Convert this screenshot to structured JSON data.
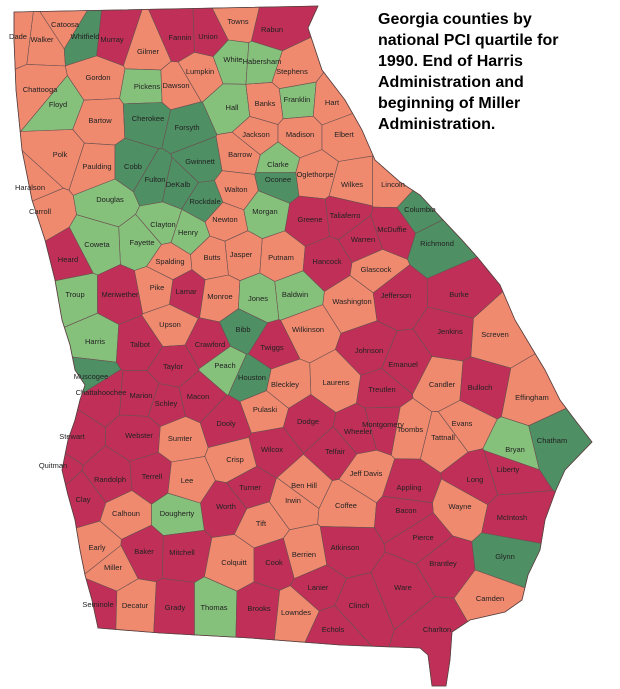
{
  "title": "Georgia counties by national PCI quartile for 1990.  End of Harris Administration and beginning of Miller Administration.",
  "counties": [
    {
      "name": "Dade",
      "color": "#f08a6f"
    },
    {
      "name": "Catoosa",
      "color": "#f08a6f"
    },
    {
      "name": "Walker",
      "color": "#f08a6f"
    },
    {
      "name": "Whitfield",
      "color": "#4e8f64"
    },
    {
      "name": "Murray",
      "color": "#c02f57"
    },
    {
      "name": "Fannin",
      "color": "#c02f57"
    },
    {
      "name": "Union",
      "color": "#c02f57"
    },
    {
      "name": "Towns",
      "color": "#f08a6f"
    },
    {
      "name": "Rabun",
      "color": "#c02f57"
    },
    {
      "name": "Gilmer",
      "color": "#f08a6f"
    },
    {
      "name": "White",
      "color": "#86c17c"
    },
    {
      "name": "Habersham",
      "color": "#86c17c"
    },
    {
      "name": "Stephens",
      "color": "#f08a6f"
    },
    {
      "name": "Lumpkin",
      "color": "#f08a6f"
    },
    {
      "name": "Gordon",
      "color": "#f08a6f"
    },
    {
      "name": "Chattooga",
      "color": "#f08a6f"
    },
    {
      "name": "Pickens",
      "color": "#86c17c"
    },
    {
      "name": "Dawson",
      "color": "#f08a6f"
    },
    {
      "name": "Floyd",
      "color": "#86c17c"
    },
    {
      "name": "Hall",
      "color": "#86c17c"
    },
    {
      "name": "Banks",
      "color": "#f08a6f"
    },
    {
      "name": "Franklin",
      "color": "#86c17c"
    },
    {
      "name": "Hart",
      "color": "#f08a6f"
    },
    {
      "name": "Bartow",
      "color": "#f08a6f"
    },
    {
      "name": "Cherokee",
      "color": "#4e8f64"
    },
    {
      "name": "Forsyth",
      "color": "#4e8f64"
    },
    {
      "name": "Jackson",
      "color": "#f08a6f"
    },
    {
      "name": "Madison",
      "color": "#f08a6f"
    },
    {
      "name": "Elbert",
      "color": "#f08a6f"
    },
    {
      "name": "Polk",
      "color": "#f08a6f"
    },
    {
      "name": "Paulding",
      "color": "#f08a6f"
    },
    {
      "name": "Cobb",
      "color": "#4e8f64"
    },
    {
      "name": "Gwinnett",
      "color": "#4e8f64"
    },
    {
      "name": "Barrow",
      "color": "#f08a6f"
    },
    {
      "name": "Clarke",
      "color": "#86c17c"
    },
    {
      "name": "Oconee",
      "color": "#4e8f64"
    },
    {
      "name": "Oglethorpe",
      "color": "#f08a6f"
    },
    {
      "name": "Wilkes",
      "color": "#f08a6f"
    },
    {
      "name": "Lincoln",
      "color": "#f08a6f"
    },
    {
      "name": "Haralson",
      "color": "#f08a6f"
    },
    {
      "name": "Fulton",
      "color": "#4e8f64"
    },
    {
      "name": "DeKalb",
      "color": "#4e8f64"
    },
    {
      "name": "Walton",
      "color": "#f08a6f"
    },
    {
      "name": "Rockdale",
      "color": "#4e8f64"
    },
    {
      "name": "Douglas",
      "color": "#86c17c"
    },
    {
      "name": "Carroll",
      "color": "#f08a6f"
    },
    {
      "name": "Newton",
      "color": "#f08a6f"
    },
    {
      "name": "Morgan",
      "color": "#86c17c"
    },
    {
      "name": "Greene",
      "color": "#c02f57"
    },
    {
      "name": "Taliaferro",
      "color": "#c02f57"
    },
    {
      "name": "McDuffie",
      "color": "#c02f57"
    },
    {
      "name": "Columbia",
      "color": "#4e8f64"
    },
    {
      "name": "Warren",
      "color": "#c02f57"
    },
    {
      "name": "Richmond",
      "color": "#4e8f64"
    },
    {
      "name": "Clayton",
      "color": "#86c17c"
    },
    {
      "name": "Henry",
      "color": "#86c17c"
    },
    {
      "name": "Fayette",
      "color": "#86c17c"
    },
    {
      "name": "Coweta",
      "color": "#86c17c"
    },
    {
      "name": "Jasper",
      "color": "#f08a6f"
    },
    {
      "name": "Putnam",
      "color": "#f08a6f"
    },
    {
      "name": "Hancock",
      "color": "#c02f57"
    },
    {
      "name": "Butts",
      "color": "#f08a6f"
    },
    {
      "name": "Spalding",
      "color": "#f08a6f"
    },
    {
      "name": "Heard",
      "color": "#c02f57"
    },
    {
      "name": "Glascock",
      "color": "#f08a6f"
    },
    {
      "name": "Troup",
      "color": "#86c17c"
    },
    {
      "name": "Meriwether",
      "color": "#c02f57"
    },
    {
      "name": "Pike",
      "color": "#f08a6f"
    },
    {
      "name": "Lamar",
      "color": "#c02f57"
    },
    {
      "name": "Monroe",
      "color": "#f08a6f"
    },
    {
      "name": "Jones",
      "color": "#86c17c"
    },
    {
      "name": "Baldwin",
      "color": "#86c17c"
    },
    {
      "name": "Washington",
      "color": "#f08a6f"
    },
    {
      "name": "Jefferson",
      "color": "#c02f57"
    },
    {
      "name": "Burke",
      "color": "#c02f57"
    },
    {
      "name": "Upson",
      "color": "#f08a6f"
    },
    {
      "name": "Wilkinson",
      "color": "#f08a6f"
    },
    {
      "name": "Jenkins",
      "color": "#c02f57"
    },
    {
      "name": "Screven",
      "color": "#f08a6f"
    },
    {
      "name": "Harris",
      "color": "#86c17c"
    },
    {
      "name": "Talbot",
      "color": "#c02f57"
    },
    {
      "name": "Crawford",
      "color": "#c02f57"
    },
    {
      "name": "Twiggs",
      "color": "#c02f57"
    },
    {
      "name": "Bibb",
      "color": "#4e8f64"
    },
    {
      "name": "Johnson",
      "color": "#c02f57"
    },
    {
      "name": "Emanuel",
      "color": "#c02f57"
    },
    {
      "name": "Taylor",
      "color": "#c02f57"
    },
    {
      "name": "Peach",
      "color": "#86c17c"
    },
    {
      "name": "Houston",
      "color": "#4e8f64"
    },
    {
      "name": "Laurens",
      "color": "#f08a6f"
    },
    {
      "name": "Candler",
      "color": "#f08a6f"
    },
    {
      "name": "Bulloch",
      "color": "#c02f57"
    },
    {
      "name": "Effingham",
      "color": "#f08a6f"
    },
    {
      "name": "Muscogee",
      "color": "#4e8f64"
    },
    {
      "name": "Chattahoochee",
      "color": "#c02f57"
    },
    {
      "name": "Marion",
      "color": "#c02f57"
    },
    {
      "name": "Schley",
      "color": "#c02f57"
    },
    {
      "name": "Macon",
      "color": "#c02f57"
    },
    {
      "name": "Bleckley",
      "color": "#f08a6f"
    },
    {
      "name": "Treutlen",
      "color": "#c02f57"
    },
    {
      "name": "Pulaski",
      "color": "#f08a6f"
    },
    {
      "name": "Dodge",
      "color": "#c02f57"
    },
    {
      "name": "Montgomery",
      "color": "#c02f57"
    },
    {
      "name": "Toombs",
      "color": "#f08a6f"
    },
    {
      "name": "Tattnall",
      "color": "#f08a6f"
    },
    {
      "name": "Evans",
      "color": "#f08a6f"
    },
    {
      "name": "Bryan",
      "color": "#86c17c"
    },
    {
      "name": "Chatham",
      "color": "#4e8f64"
    },
    {
      "name": "Stewart",
      "color": "#c02f57"
    },
    {
      "name": "Webster",
      "color": "#c02f57"
    },
    {
      "name": "Sumter",
      "color": "#f08a6f"
    },
    {
      "name": "Dooly",
      "color": "#c02f57"
    },
    {
      "name": "Wilcox",
      "color": "#c02f57"
    },
    {
      "name": "Wheeler",
      "color": "#c02f57"
    },
    {
      "name": "Telfair",
      "color": "#c02f57"
    },
    {
      "name": "Crisp",
      "color": "#f08a6f"
    },
    {
      "name": "Quitman",
      "color": "#c02f57"
    },
    {
      "name": "Randolph",
      "color": "#c02f57"
    },
    {
      "name": "Terrell",
      "color": "#c02f57"
    },
    {
      "name": "Lee",
      "color": "#f08a6f"
    },
    {
      "name": "Liberty",
      "color": "#c02f57"
    },
    {
      "name": "Long",
      "color": "#c02f57"
    },
    {
      "name": "Jeff Davis",
      "color": "#f08a6f"
    },
    {
      "name": "Ben Hill",
      "color": "#f08a6f"
    },
    {
      "name": "Irwin",
      "color": "#f08a6f"
    },
    {
      "name": "Turner",
      "color": "#c02f57"
    },
    {
      "name": "Appling",
      "color": "#c02f57"
    },
    {
      "name": "Clay",
      "color": "#c02f57"
    },
    {
      "name": "Worth",
      "color": "#c02f57"
    },
    {
      "name": "Coffee",
      "color": "#f08a6f"
    },
    {
      "name": "Wayne",
      "color": "#f08a6f"
    },
    {
      "name": "McIntosh",
      "color": "#c02f57"
    },
    {
      "name": "Calhoun",
      "color": "#f08a6f"
    },
    {
      "name": "Dougherty",
      "color": "#86c17c"
    },
    {
      "name": "Bacon",
      "color": "#c02f57"
    },
    {
      "name": "Tift",
      "color": "#f08a6f"
    },
    {
      "name": "Pierce",
      "color": "#c02f57"
    },
    {
      "name": "Early",
      "color": "#f08a6f"
    },
    {
      "name": "Baker",
      "color": "#c02f57"
    },
    {
      "name": "Mitchell",
      "color": "#c02f57"
    },
    {
      "name": "Berrien",
      "color": "#f08a6f"
    },
    {
      "name": "Atkinson",
      "color": "#c02f57"
    },
    {
      "name": "Brantley",
      "color": "#c02f57"
    },
    {
      "name": "Glynn",
      "color": "#4e8f64"
    },
    {
      "name": "Miller",
      "color": "#f08a6f"
    },
    {
      "name": "Colquitt",
      "color": "#f08a6f"
    },
    {
      "name": "Cook",
      "color": "#c02f57"
    },
    {
      "name": "Lanier",
      "color": "#c02f57"
    },
    {
      "name": "Ware",
      "color": "#c02f57"
    },
    {
      "name": "Camden",
      "color": "#f08a6f"
    },
    {
      "name": "Seminole",
      "color": "#c02f57"
    },
    {
      "name": "Decatur",
      "color": "#f08a6f"
    },
    {
      "name": "Grady",
      "color": "#c02f57"
    },
    {
      "name": "Thomas",
      "color": "#86c17c"
    },
    {
      "name": "Brooks",
      "color": "#c02f57"
    },
    {
      "name": "Lowndes",
      "color": "#f08a6f"
    },
    {
      "name": "Clinch",
      "color": "#c02f57"
    },
    {
      "name": "Echols",
      "color": "#c02f57"
    },
    {
      "name": "Charlton",
      "color": "#c02f57"
    }
  ]
}
